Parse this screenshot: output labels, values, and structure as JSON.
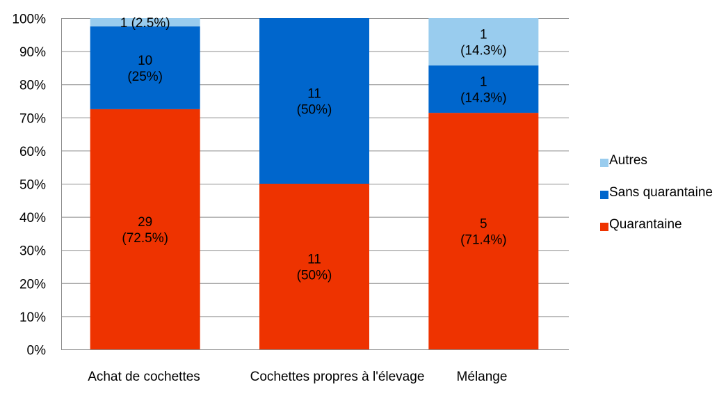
{
  "chart_data": {
    "type": "bar",
    "stacked": "percent",
    "title": "",
    "xlabel": "",
    "ylabel": "",
    "ylim": [
      0,
      100
    ],
    "grid": true,
    "legend_position": "right",
    "y_ticks": [
      "0%",
      "10%",
      "20%",
      "30%",
      "40%",
      "50%",
      "60%",
      "70%",
      "80%",
      "90%",
      "100%"
    ],
    "categories": [
      "Achat de cochettes",
      "Cochettes propres à l'élevage",
      "Mélange"
    ],
    "series": [
      {
        "name": "Quarantaine",
        "color": "#EE3300",
        "counts": [
          29,
          11,
          5
        ],
        "percents": [
          72.5,
          50,
          71.4
        ],
        "labels": [
          [
            "29",
            "(72.5%)"
          ],
          [
            "11",
            "(50%)"
          ],
          [
            "5",
            "(71.4%)"
          ]
        ]
      },
      {
        "name": "Sans quarantaine",
        "color": "#0066CC",
        "counts": [
          10,
          11,
          1
        ],
        "percents": [
          25,
          50,
          14.3
        ],
        "labels": [
          [
            "10",
            "(25%)"
          ],
          [
            "11",
            "(50%)"
          ],
          [
            "1",
            "(14.3%)"
          ]
        ]
      },
      {
        "name": "Autres",
        "color": "#99CCEE",
        "counts": [
          1,
          0,
          1
        ],
        "percents": [
          2.5,
          0,
          14.3
        ],
        "labels": [
          [
            "1 (2.5%)"
          ],
          [],
          [
            "1",
            "(14.3%)"
          ]
        ]
      }
    ]
  }
}
